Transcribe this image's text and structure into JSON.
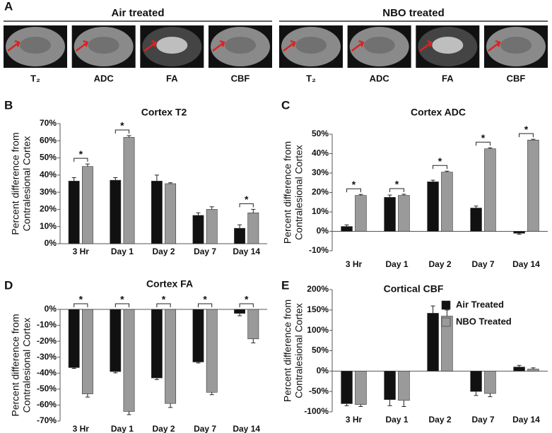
{
  "panel_a": {
    "letter": "A",
    "groups": [
      {
        "title": "Air treated",
        "images": [
          "T₂",
          "ADC",
          "FA",
          "CBF"
        ]
      },
      {
        "title": "NBO treated",
        "images": [
          "T₂",
          "ADC",
          "FA",
          "CBF"
        ]
      }
    ]
  },
  "chart_data": [
    {
      "type": "bar",
      "panel": "B",
      "title": "Cortex T2",
      "y_label": [
        "Percent difference from",
        "Contralesional Cortex"
      ],
      "categories": [
        "3 Hr",
        "Day 1",
        "Day 2",
        "Day 7",
        "Day 14"
      ],
      "series": [
        {
          "color": "#111111",
          "values": [
            36.5,
            37,
            36.5,
            16.5,
            9
          ],
          "errors": [
            2,
            1.5,
            3.5,
            1.5,
            2
          ]
        },
        {
          "color": "#9a9a9a",
          "values": [
            45,
            62,
            35,
            20,
            18
          ],
          "errors": [
            1.5,
            1,
            0.5,
            1.5,
            2
          ]
        }
      ],
      "significance": [
        "*",
        "*",
        null,
        null,
        "*"
      ],
      "ylim": [
        0,
        70
      ],
      "yticks": [
        {
          "value": 0,
          "label": "0%"
        },
        {
          "value": 10,
          "label": "10%"
        },
        {
          "value": 20,
          "label": "20%"
        },
        {
          "value": 30,
          "label": "30%"
        },
        {
          "value": 40,
          "label": "40%"
        },
        {
          "value": 50,
          "label": "50%"
        },
        {
          "value": 60,
          "label": "60%"
        },
        {
          "value": 70,
          "label": "70%"
        }
      ]
    },
    {
      "type": "bar",
      "panel": "C",
      "title": "Cortex ADC",
      "y_label": [
        "Percent difference from",
        "Contralesional Cortex"
      ],
      "categories": [
        "3 Hr",
        "Day 1",
        "Day 2",
        "Day 7",
        "Day 14"
      ],
      "series": [
        {
          "color": "#111111",
          "values": [
            2.5,
            17.5,
            25.5,
            12,
            -1
          ],
          "errors": [
            0.8,
            1.2,
            0.8,
            1,
            0.5
          ]
        },
        {
          "color": "#9a9a9a",
          "values": [
            18.5,
            18.5,
            30.5,
            42.5,
            47
          ],
          "errors": [
            0.5,
            0.6,
            0.5,
            0.5,
            0.4
          ]
        }
      ],
      "significance": [
        "*",
        "*",
        "*",
        "*",
        "*"
      ],
      "ylim": [
        -10,
        50
      ],
      "yticks": [
        {
          "value": -10,
          "label": "-10%"
        },
        {
          "value": 0,
          "label": "0%"
        },
        {
          "value": 10,
          "label": "10%"
        },
        {
          "value": 20,
          "label": "20%"
        },
        {
          "value": 30,
          "label": "30%"
        },
        {
          "value": 40,
          "label": "40%"
        },
        {
          "value": 50,
          "label": "50%"
        }
      ]
    },
    {
      "type": "bar",
      "panel": "D",
      "title": "Cortex FA",
      "y_label": [
        "Percent difference from",
        "Contralesional Cortex"
      ],
      "categories": [
        "3 Hr",
        "Day 1",
        "Day 2",
        "Day 7",
        "Day 14"
      ],
      "series": [
        {
          "color": "#111111",
          "values": [
            -36.5,
            -39,
            -43,
            -33,
            -2.5
          ],
          "errors": [
            0.5,
            0.8,
            1,
            0.6,
            1.5
          ]
        },
        {
          "color": "#9a9a9a",
          "values": [
            -53,
            -64,
            -59,
            -52,
            -18.5
          ],
          "errors": [
            2,
            2,
            2.5,
            1.5,
            2.5
          ]
        }
      ],
      "significance": [
        "*",
        "*",
        "*",
        "*",
        "*"
      ],
      "ylim": [
        -70,
        0
      ],
      "yticks": [
        {
          "value": 0,
          "label": "0%"
        },
        {
          "value": -10,
          "label": "-10%"
        },
        {
          "value": -20,
          "label": "-20%"
        },
        {
          "value": -30,
          "label": "-30%"
        },
        {
          "value": -40,
          "label": "-40%"
        },
        {
          "value": -50,
          "label": "-50%"
        },
        {
          "value": -60,
          "label": "-60%"
        },
        {
          "value": -70,
          "label": "-70%"
        }
      ]
    },
    {
      "type": "bar",
      "panel": "E",
      "title": "Cortical CBF",
      "y_label": [
        "Percent difference from",
        "Contralesional Cortex"
      ],
      "categories": [
        "3 Hr",
        "Day 1",
        "Day 2",
        "Day 7",
        "Day 14"
      ],
      "series": [
        {
          "name": "Air Treated",
          "color": "#111111",
          "values": [
            -80,
            -70,
            142,
            -50,
            10
          ],
          "errors": [
            5,
            15,
            18,
            10,
            4
          ]
        },
        {
          "name": "NBO Treated",
          "color": "#9a9a9a",
          "values": [
            -82,
            -72,
            135,
            -55,
            5
          ],
          "errors": [
            5,
            15,
            15,
            8,
            3
          ]
        }
      ],
      "legend": "upper right",
      "ylim": [
        -100,
        200
      ],
      "yticks": [
        {
          "value": -100,
          "label": "-100%"
        },
        {
          "value": -50,
          "label": "-50%"
        },
        {
          "value": 0,
          "label": "0%"
        },
        {
          "value": 50,
          "label": "50%"
        },
        {
          "value": 100,
          "label": "100%"
        },
        {
          "value": 150,
          "label": "150%"
        },
        {
          "value": 200,
          "label": "200%"
        }
      ]
    }
  ]
}
